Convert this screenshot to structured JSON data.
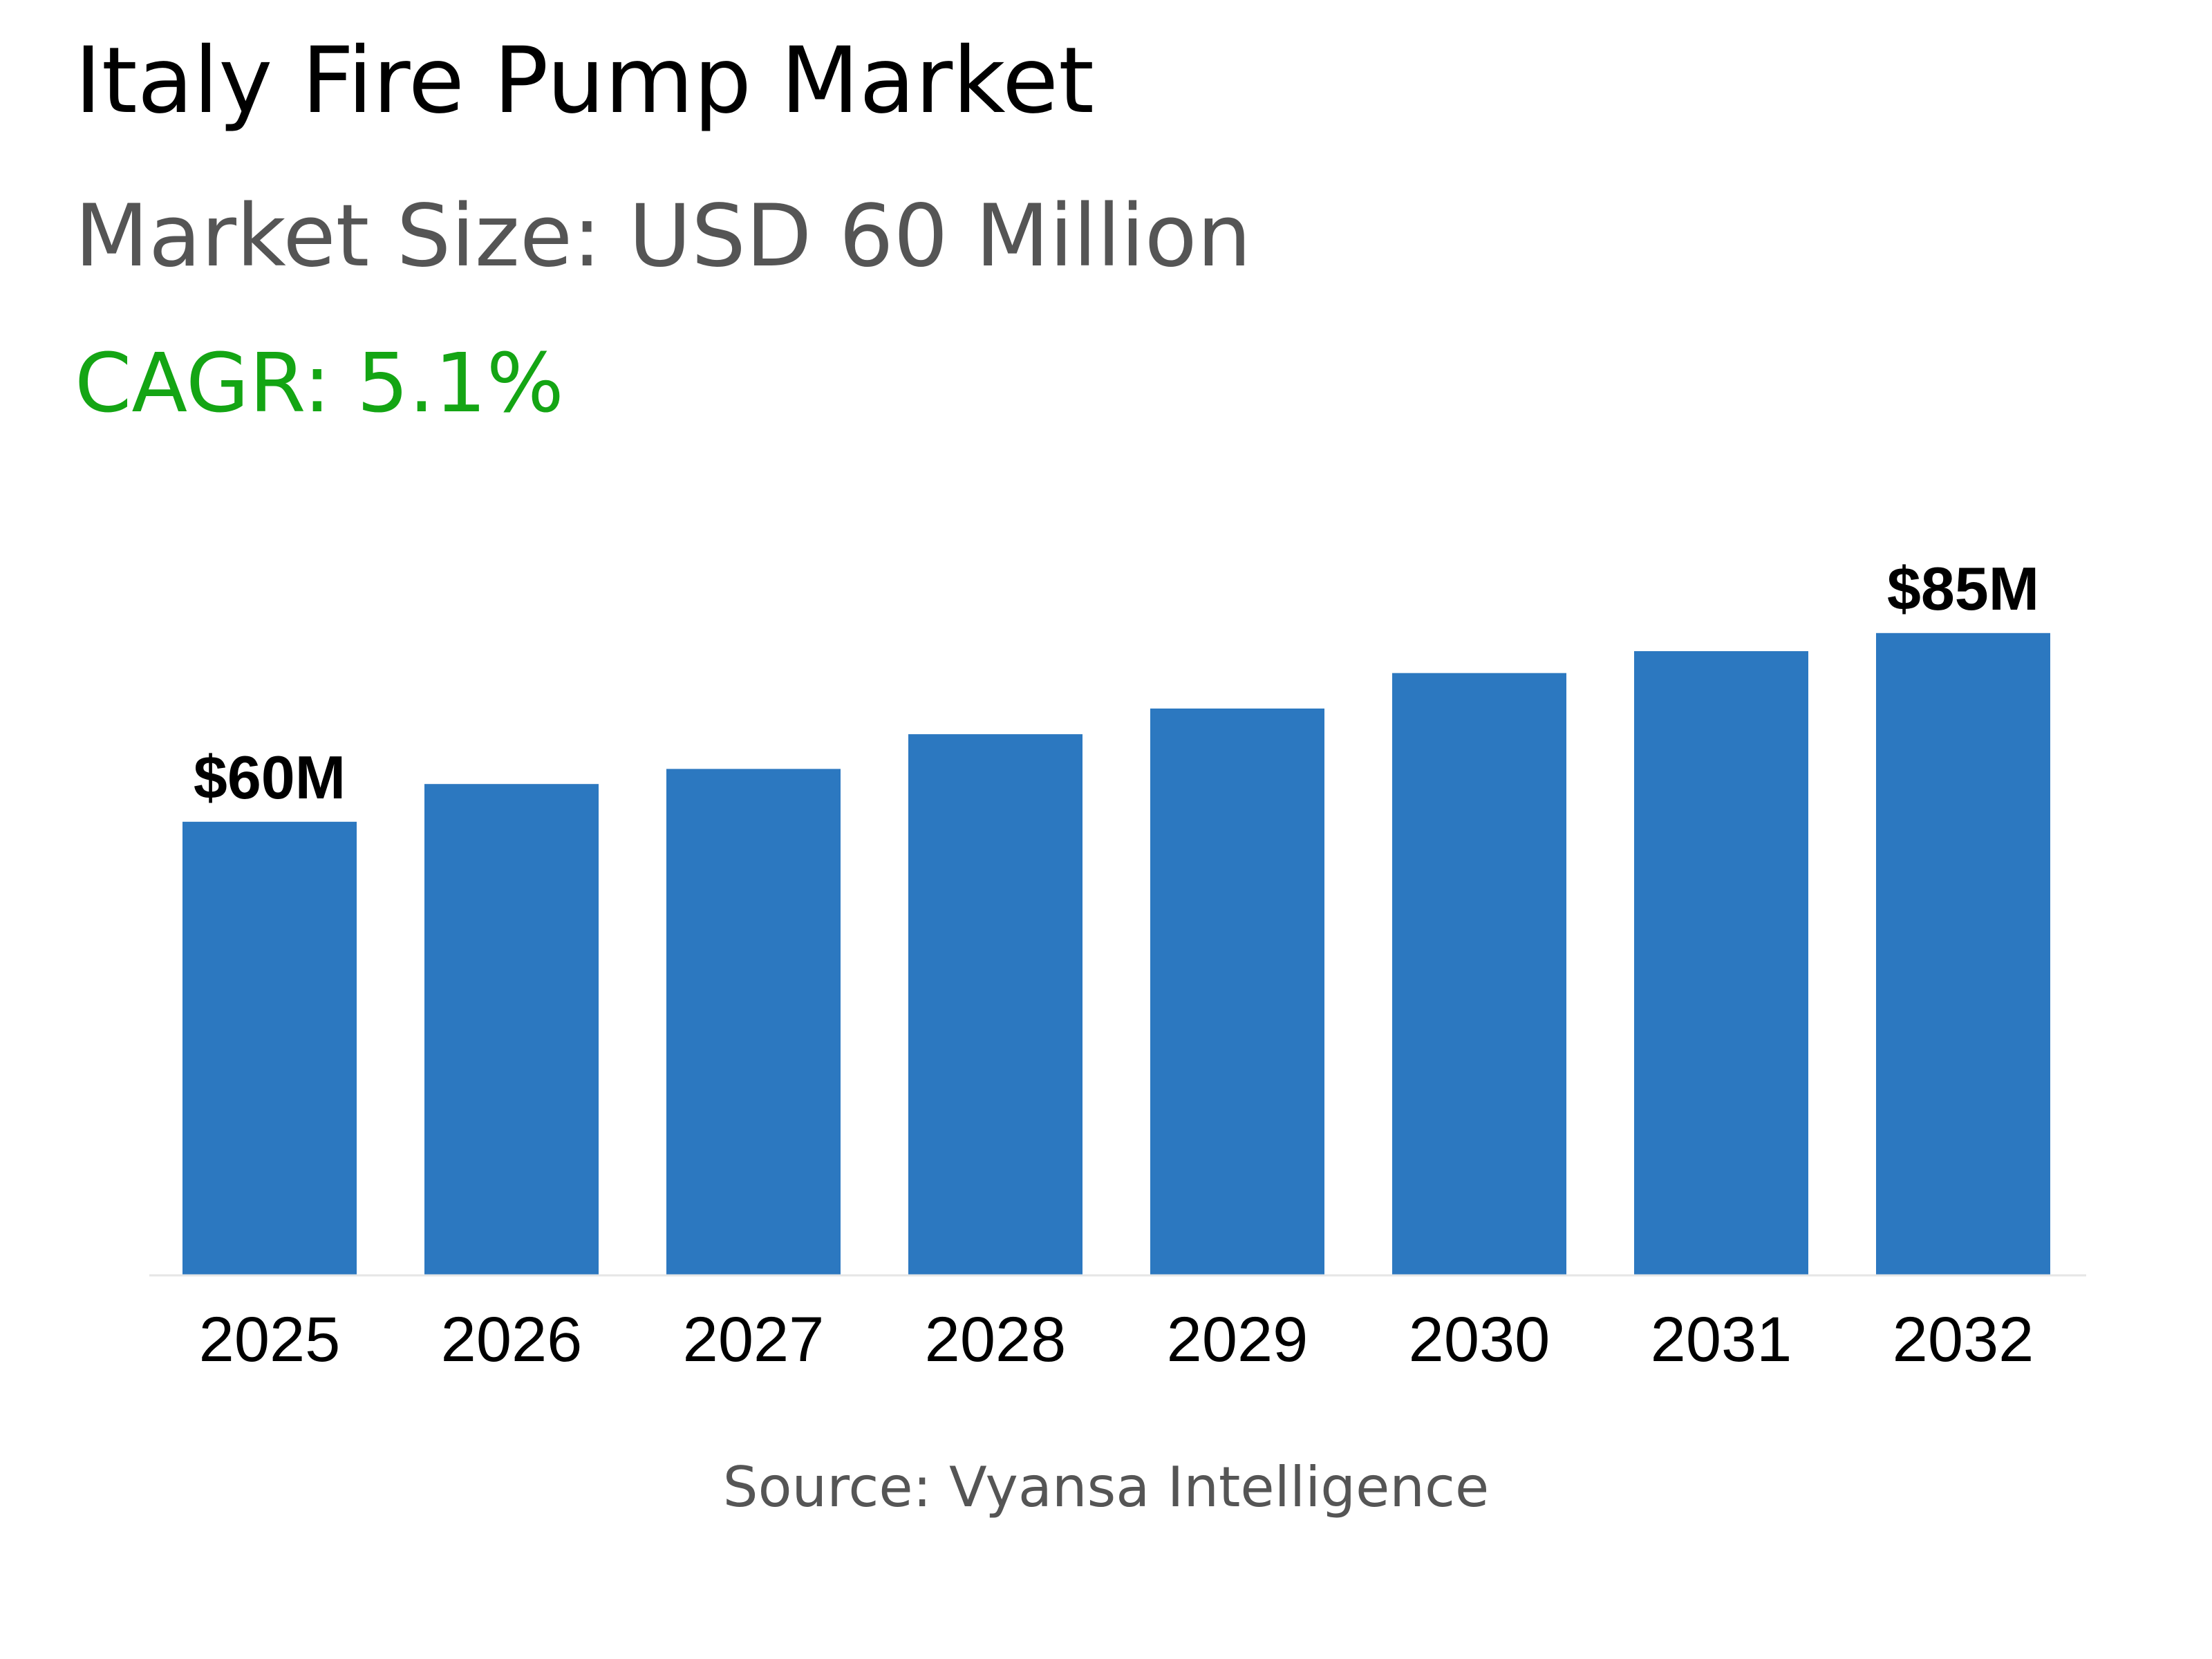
{
  "header": {
    "title": "Italy Fire Pump Market",
    "subtitle": "Market Size: USD 60 Million",
    "cagr": "CAGR: 5.1%"
  },
  "footer": {
    "source": "Source: Vyansa Intelligence"
  },
  "colors": {
    "bar": "#2c78c0",
    "cagr": "#14a514",
    "axis": "#e6e6e6"
  },
  "chart_data": {
    "type": "bar",
    "categories": [
      "2025",
      "2026",
      "2027",
      "2028",
      "2029",
      "2030",
      "2031",
      "2032"
    ],
    "values": [
      60,
      65,
      67,
      71.6,
      75,
      79.7,
      82.6,
      85
    ],
    "data_labels": [
      "$60M",
      "",
      "",
      "",
      "",
      "",
      "",
      "$85M"
    ],
    "title": "Italy Fire Pump Market",
    "xlabel": "",
    "ylabel": "",
    "ylim": [
      0,
      100
    ],
    "grid": false,
    "legend": "none"
  }
}
